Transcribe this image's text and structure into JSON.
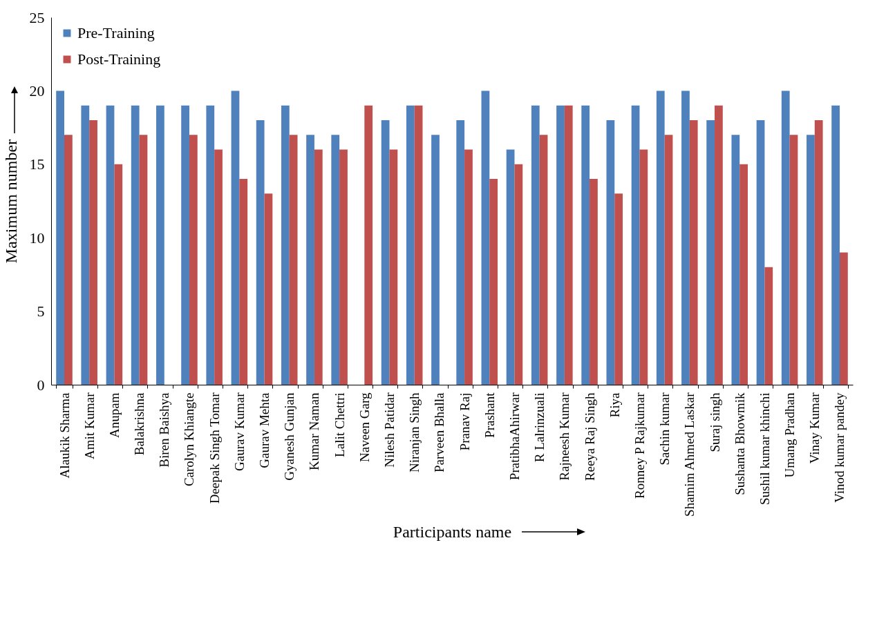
{
  "chart_data": {
    "type": "bar",
    "xlabel": "Participants name",
    "ylabel": "Maximum number",
    "categories": [
      "Alaukik Sharma",
      "Amit Kumar",
      "Anupam",
      "Balakrishna",
      "Biren Baishya",
      "Carolyn Khiangte",
      "Deepak Singh Tomar",
      "Gaurav Kumar",
      "Gaurav Mehta",
      "Gyanesh Gunjan",
      "Kumar Naman",
      "Lalit Chettri",
      "Naveen Garg",
      "Nilesh Patidar",
      "Niranjan Singh",
      "Parveen  Bhalla",
      "Pranav Raj",
      "Prashant",
      "PratibhaAhirwar",
      "R Lalrinzuali",
      "Rajneesh Kumar",
      "Reeya Raj Singh",
      "Riya",
      "Ronney P Rajkumar",
      "Sachin kumar",
      "Shamim Ahmed Laskar",
      "Suraj singh",
      "Sushanta Bhowmik",
      "Sushil kumar khinchi",
      "Umang Pradhan",
      "Vinay Kumar",
      "Vinod kumar pandey"
    ],
    "series": [
      {
        "name": "Pre-Training",
        "color": "#4f81bd",
        "values": [
          20,
          19,
          19,
          19,
          19,
          19,
          19,
          20,
          18,
          19,
          17,
          17,
          null,
          18,
          19,
          17,
          18,
          20,
          16,
          19,
          19,
          19,
          18,
          19,
          20,
          20,
          18,
          17,
          18,
          20,
          17,
          19
        ]
      },
      {
        "name": "Post-Training",
        "color": "#c0504d",
        "values": [
          17,
          18,
          15,
          17,
          null,
          17,
          16,
          14,
          13,
          17,
          16,
          16,
          19,
          16,
          19,
          null,
          16,
          14,
          15,
          17,
          19,
          14,
          13,
          16,
          17,
          18,
          19,
          15,
          8,
          17,
          18,
          9
        ]
      }
    ],
    "ylim": [
      0,
      25
    ],
    "yticks": [
      0,
      5,
      10,
      15,
      20,
      25
    ],
    "grid": false,
    "legend": "top left"
  }
}
